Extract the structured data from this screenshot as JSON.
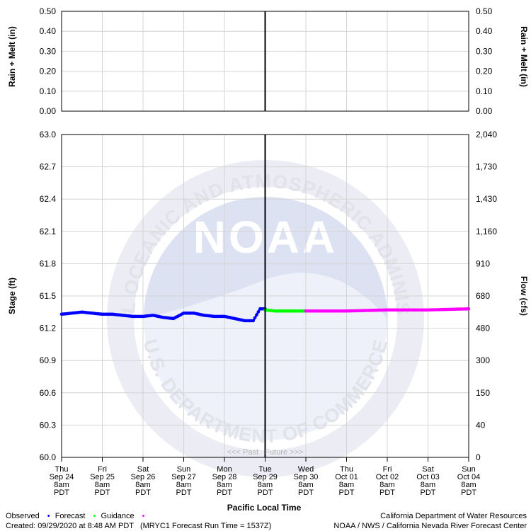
{
  "chart_data": [
    {
      "type": "bar",
      "panel": "precipitation",
      "ylabel_left": "Rain + Melt (in)",
      "ylabel_right": "Rain + Melt (in)",
      "ylim": [
        0.0,
        0.5
      ],
      "yticks": [
        "0.00",
        "0.10",
        "0.20",
        "0.30",
        "0.40",
        "0.50"
      ],
      "values": [],
      "grid": true
    },
    {
      "type": "line",
      "panel": "stage-flow",
      "ylabel_left": "Stage (ft)",
      "ylabel_right": "Flow (cfs)",
      "xlabel": "Pacific Local Time",
      "ylim": [
        60.0,
        63.0
      ],
      "yticks_left": [
        "60.0",
        "60.3",
        "60.6",
        "60.9",
        "61.2",
        "61.5",
        "61.8",
        "62.1",
        "62.4",
        "62.7",
        "63.0"
      ],
      "yticks_right": [
        "0",
        "40",
        "150",
        "300",
        "480",
        "680",
        "910",
        "1,160",
        "1,430",
        "1,730",
        "2,040"
      ],
      "grid": true,
      "x_categories": [
        [
          "Thu",
          "Sep 24",
          "8am",
          "PDT"
        ],
        [
          "Fri",
          "Sep 25",
          "8am",
          "PDT"
        ],
        [
          "Sat",
          "Sep 26",
          "8am",
          "PDT"
        ],
        [
          "Sun",
          "Sep 27",
          "8am",
          "PDT"
        ],
        [
          "Mon",
          "Sep 28",
          "8am",
          "PDT"
        ],
        [
          "Tue",
          "Sep 29",
          "8am",
          "PDT"
        ],
        [
          "Wed",
          "Sep 30",
          "8am",
          "PDT"
        ],
        [
          "Thu",
          "Oct 01",
          "8am",
          "PDT"
        ],
        [
          "Fri",
          "Oct 02",
          "8am",
          "PDT"
        ],
        [
          "Sat",
          "Oct 03",
          "8am",
          "PDT"
        ],
        [
          "Sun",
          "Oct 04",
          "8am",
          "PDT"
        ]
      ],
      "x_range": [
        "Sep 24 8am",
        "Oct 04 8am"
      ],
      "now_marker": "Sep 29 8am",
      "past_future_label": "<<< Past   Future >>>",
      "series": [
        {
          "name": "Observed",
          "color": "#0000ff",
          "points": [
            [
              "Sep 24 8am",
              61.33
            ],
            [
              "Sep 24 2pm",
              61.34
            ],
            [
              "Sep 24 8pm",
              61.35
            ],
            [
              "Sep 25 2am",
              61.34
            ],
            [
              "Sep 25 8am",
              61.33
            ],
            [
              "Sep 25 2pm",
              61.33
            ],
            [
              "Sep 25 8pm",
              61.32
            ],
            [
              "Sep 26 2am",
              61.31
            ],
            [
              "Sep 26 8am",
              61.31
            ],
            [
              "Sep 26 2pm",
              61.32
            ],
            [
              "Sep 26 8pm",
              61.3
            ],
            [
              "Sep 27 2am",
              61.29
            ],
            [
              "Sep 27 8am",
              61.34
            ],
            [
              "Sep 27 2pm",
              61.34
            ],
            [
              "Sep 27 8pm",
              61.32
            ],
            [
              "Sep 28 2am",
              61.31
            ],
            [
              "Sep 28 8am",
              61.31
            ],
            [
              "Sep 28 2pm",
              61.29
            ],
            [
              "Sep 28 8pm",
              61.27
            ],
            [
              "Sep 29 1am",
              61.27
            ],
            [
              "Sep 29 5am",
              61.38
            ],
            [
              "Sep 29 8am",
              61.38
            ]
          ]
        },
        {
          "name": "Forecast",
          "color": "#00ff00",
          "points": [
            [
              "Sep 29 8am",
              61.37
            ],
            [
              "Sep 29 2pm",
              61.36
            ],
            [
              "Sep 29 8pm",
              61.36
            ],
            [
              "Sep 30 2am",
              61.36
            ],
            [
              "Sep 30 8am",
              61.36
            ]
          ]
        },
        {
          "name": "Guidance",
          "color": "#ff00ff",
          "points": [
            [
              "Sep 30 8am",
              61.36
            ],
            [
              "Oct 01 8am",
              61.36
            ],
            [
              "Oct 02 8am",
              61.37
            ],
            [
              "Oct 03 8am",
              61.37
            ],
            [
              "Oct 04 8am",
              61.38
            ]
          ]
        }
      ]
    }
  ],
  "legend": {
    "observed_label": "Observed",
    "forecast_label": "Forecast",
    "guidance_label": "Guidance",
    "dot": "•"
  },
  "footer": {
    "created": "Created: 09/29/2020 at 8:48 AM PDT   (MRYC1 Forecast Run Time = 1537Z)",
    "agency1": "California Department of Water Resources",
    "agency2": "NOAA / NWS / California Nevada River Forecast Center"
  },
  "watermark": {
    "logo_text": "NOAA",
    "ring_text_top": "NATIONAL OCEANIC AND ATMOSPHERIC ADMINISTRATION",
    "ring_text_bottom": "U.S. DEPARTMENT OF COMMERCE"
  }
}
